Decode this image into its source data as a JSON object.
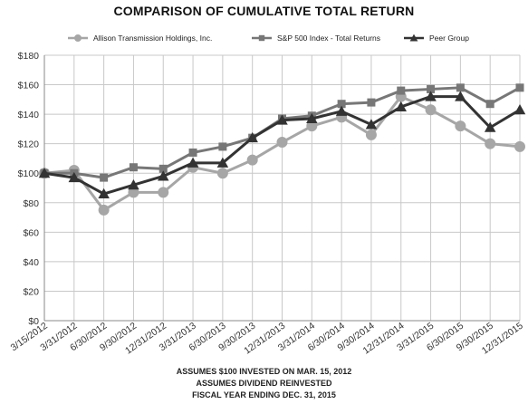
{
  "chart_data": {
    "type": "line",
    "title": "COMPARISON OF CUMULATIVE TOTAL RETURN",
    "categories": [
      "3/15/2012",
      "3/31/2012",
      "6/30/2012",
      "9/30/2012",
      "12/31/2012",
      "3/31/2013",
      "6/30/2013",
      "9/30/2013",
      "12/31/2013",
      "3/31/2014",
      "6/30/2014",
      "9/30/2014",
      "12/31/2014",
      "3/31/2015",
      "6/30/2015",
      "9/30/2015",
      "12/31/2015"
    ],
    "y_ticks": [
      "$0",
      "$20",
      "$40",
      "$60",
      "$80",
      "$100",
      "$120",
      "$140",
      "$160",
      "$180"
    ],
    "ylim": [
      0,
      180
    ],
    "grid": true,
    "legend_position": "top",
    "series": [
      {
        "name": "Allison Transmission Holdings, Inc.",
        "color": "#a6a6a6",
        "marker": "circle",
        "values": [
          100,
          102,
          75,
          87,
          87,
          104,
          100,
          109,
          121,
          132,
          138,
          126,
          152,
          143,
          132,
          120,
          118
        ]
      },
      {
        "name": "S&P 500 Index - Total Returns",
        "color": "#777777",
        "marker": "square",
        "values": [
          100,
          100,
          97,
          104,
          103,
          114,
          118,
          124,
          137,
          139,
          147,
          148,
          156,
          157,
          158,
          147,
          158
        ]
      },
      {
        "name": "Peer Group",
        "color": "#333333",
        "marker": "triangle",
        "values": [
          100,
          97,
          86,
          92,
          98,
          107,
          107,
          124,
          136,
          137,
          142,
          133,
          145,
          152,
          152,
          131,
          143
        ]
      }
    ],
    "footnotes": [
      "ASSUMES $100 INVESTED ON MAR. 15, 2012",
      "ASSUMES DIVIDEND REINVESTED",
      "FISCAL YEAR ENDING DEC. 31, 2015"
    ]
  }
}
